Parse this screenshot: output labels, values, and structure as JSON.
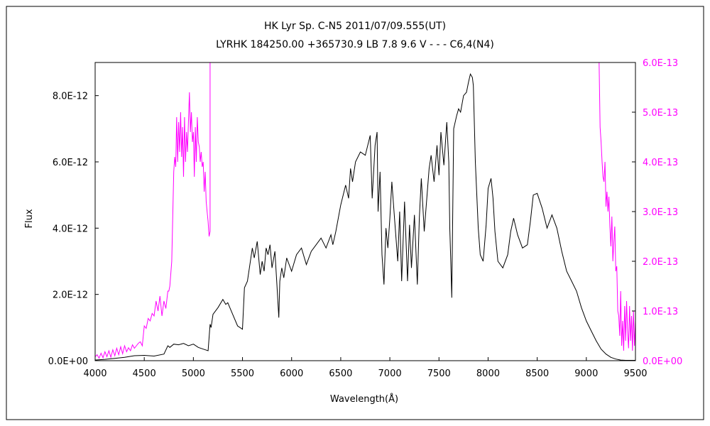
{
  "chart_data": {
    "type": "line",
    "title_line1": "HK Lyr    Sp. C-N5    2011/07/09.555(UT)",
    "title_line2": "LYRHK 184250.00 +365730.9 LB 7.8 9.6 V - - - C6,4(N4)",
    "xlabel": "Wavelength(Å)",
    "ylabel": "Flux",
    "xlim": [
      4000,
      9500
    ],
    "ylim": [
      0,
      9e-12
    ],
    "y2lim": [
      0,
      6e-13
    ],
    "x_ticks": [
      4000,
      4500,
      5000,
      5500,
      6000,
      6500,
      7000,
      7500,
      8000,
      8500,
      9000,
      9500
    ],
    "x_tick_labels": [
      "4000",
      "4500",
      "5000",
      "5500",
      "6000",
      "6500",
      "7000",
      "7500",
      "8000",
      "8500",
      "9000",
      "9500"
    ],
    "y_ticks": [
      0,
      2e-12,
      4e-12,
      6e-12,
      8e-12
    ],
    "y_tick_labels": [
      "0.0E+00",
      "2.0E-12",
      "4.0E-12",
      "6.0E-12",
      "8.0E-12"
    ],
    "y2_ticks": [
      0,
      1e-13,
      2e-13,
      3e-13,
      4e-13,
      5e-13,
      6e-13
    ],
    "y2_tick_labels": [
      "0.0E+00",
      "1.0E-13",
      "2.0E-13",
      "3.0E-13",
      "4.0E-13",
      "5.0E-13",
      "6.0E-13"
    ],
    "grid": false,
    "colors": {
      "main": "#000000",
      "scaled": "#ff00ff",
      "frame": "#000000"
    },
    "series": [
      {
        "axis": "left",
        "x": [
          4000,
          4100,
          4200,
          4300,
          4400,
          4500,
          4600,
          4700,
          4740,
          4760,
          4800,
          4850,
          4900,
          4950,
          5000,
          5050,
          5100,
          5150,
          5170,
          5180,
          5200,
          5250,
          5300,
          5330,
          5350,
          5400,
          5450,
          5500,
          5520,
          5550,
          5600,
          5620,
          5650,
          5680,
          5700,
          5720,
          5740,
          5760,
          5780,
          5800,
          5830,
          5850,
          5870,
          5880,
          5900,
          5920,
          5950,
          6000,
          6050,
          6100,
          6150,
          6200,
          6250,
          6300,
          6350,
          6400,
          6420,
          6450,
          6500,
          6550,
          6580,
          6600,
          6620,
          6650,
          6700,
          6750,
          6800,
          6820,
          6850,
          6870,
          6880,
          6900,
          6920,
          6940,
          6960,
          6980,
          7000,
          7020,
          7050,
          7080,
          7100,
          7120,
          7150,
          7180,
          7200,
          7220,
          7250,
          7280,
          7300,
          7320,
          7350,
          7400,
          7420,
          7450,
          7480,
          7500,
          7520,
          7550,
          7580,
          7600,
          7610,
          7620,
          7630,
          7650,
          7680,
          7700,
          7720,
          7750,
          7780,
          7800,
          7820,
          7840,
          7850,
          7870,
          7900,
          7920,
          7950,
          7980,
          8000,
          8030,
          8050,
          8070,
          8100,
          8150,
          8200,
          8230,
          8260,
          8300,
          8350,
          8400,
          8430,
          8460,
          8500,
          8550,
          8600,
          8650,
          8700,
          8750,
          8800,
          8850,
          8900,
          8950,
          9000,
          9050,
          9100,
          9150,
          9200,
          9250,
          9300,
          9350,
          9400,
          9450,
          9500
        ],
        "y": [
          2e-14,
          4e-14,
          7e-14,
          1e-13,
          1.5e-13,
          1.6e-13,
          1.4e-13,
          2e-13,
          4.5e-13,
          4e-13,
          5e-13,
          4.8e-13,
          5.2e-13,
          4.5e-13,
          5e-13,
          4e-13,
          3.5e-13,
          3e-13,
          1.1e-12,
          1e-12,
          1.4e-12,
          1.6e-12,
          1.85e-12,
          1.7e-12,
          1.75e-12,
          1.4e-12,
          1.05e-12,
          9.5e-13,
          2.2e-12,
          2.4e-12,
          3.4e-12,
          3.1e-12,
          3.6e-12,
          2.6e-12,
          3e-12,
          2.7e-12,
          3.4e-12,
          3.2e-12,
          3.5e-12,
          2.8e-12,
          3.3e-12,
          2.3e-12,
          1.3e-12,
          2.4e-12,
          2.8e-12,
          2.5e-12,
          3.1e-12,
          2.7e-12,
          3.2e-12,
          3.4e-12,
          2.9e-12,
          3.3e-12,
          3.5e-12,
          3.7e-12,
          3.4e-12,
          3.8e-12,
          3.5e-12,
          3.9e-12,
          4.7e-12,
          5.3e-12,
          4.9e-12,
          5.8e-12,
          5.4e-12,
          6e-12,
          6.3e-12,
          6.2e-12,
          6.8e-12,
          4.9e-12,
          6.5e-12,
          6.9e-12,
          4.5e-12,
          5.7e-12,
          3.2e-12,
          2.3e-12,
          4e-12,
          3.4e-12,
          4.3e-12,
          5.4e-12,
          4.2e-12,
          3e-12,
          4.5e-12,
          2.4e-12,
          4.8e-12,
          2.4e-12,
          4.1e-12,
          2.8e-12,
          4.4e-12,
          2.3e-12,
          4.3e-12,
          5.5e-12,
          3.9e-12,
          5.8e-12,
          6.2e-12,
          5.4e-12,
          6.5e-12,
          5.6e-12,
          6.9e-12,
          5.9e-12,
          7.2e-12,
          6e-12,
          4e-12,
          3e-12,
          1.9e-12,
          7e-12,
          7.4e-12,
          7.6e-12,
          7.5e-12,
          8e-12,
          8.1e-12,
          8.4e-12,
          8.65e-12,
          8.55e-12,
          8.3e-12,
          6e-12,
          4e-12,
          3.2e-12,
          3e-12,
          4.1e-12,
          5.2e-12,
          5.5e-12,
          4.9e-12,
          3.9e-12,
          3e-12,
          2.8e-12,
          3.2e-12,
          3.9e-12,
          4.3e-12,
          3.8e-12,
          3.4e-12,
          3.5e-12,
          4.2e-12,
          5e-12,
          5.05e-12,
          4.6e-12,
          4e-12,
          4.4e-12,
          4e-12,
          3.3e-12,
          2.7e-12,
          2.4e-12,
          2.1e-12,
          1.6e-12,
          1.2e-12,
          9e-13,
          6e-13,
          3.5e-13,
          2e-13,
          1e-13,
          5e-14,
          2e-14,
          1e-14,
          1e-14,
          1e-14
        ]
      },
      {
        "axis": "right",
        "x": [
          4000,
          4020,
          4040,
          4060,
          4080,
          4100,
          4120,
          4140,
          4160,
          4180,
          4200,
          4220,
          4240,
          4260,
          4280,
          4300,
          4320,
          4340,
          4360,
          4380,
          4400,
          4420,
          4440,
          4460,
          4480,
          4500,
          4520,
          4540,
          4560,
          4580,
          4600,
          4620,
          4640,
          4660,
          4680,
          4700,
          4720,
          4740,
          4750,
          4760,
          4780,
          4800,
          4810,
          4820,
          4830,
          4840,
          4850,
          4860,
          4870,
          4880,
          4890,
          4900,
          4910,
          4920,
          4930,
          4940,
          4950,
          4960,
          4970,
          4980,
          4990,
          5000,
          5010,
          5020,
          5030,
          5040,
          5050,
          5060,
          5070,
          5080,
          5090,
          5100,
          5110,
          5120,
          5130,
          5140,
          5150,
          5160,
          5170,
          5170
        ],
        "y": [
          8e-15,
          1.2e-14,
          5e-15,
          1.5e-14,
          6e-15,
          1.8e-14,
          8e-15,
          2e-14,
          7e-15,
          2.2e-14,
          1e-14,
          2.5e-14,
          1.2e-14,
          2.8e-14,
          1.4e-14,
          3e-14,
          1.8e-14,
          2.6e-14,
          2e-14,
          3.2e-14,
          2.5e-14,
          3e-14,
          3.5e-14,
          3.8e-14,
          3e-14,
          7e-14,
          6.5e-14,
          8.5e-14,
          8e-14,
          9.5e-14,
          9e-14,
          1.2e-13,
          1e-13,
          1.3e-13,
          9e-14,
          1.2e-13,
          1.05e-13,
          1.4e-13,
          1.4e-13,
          1.5e-13,
          2e-13,
          3.8e-13,
          4.1e-13,
          3.9e-13,
          4.9e-13,
          4e-13,
          4.8e-13,
          4.2e-13,
          5e-13,
          4.1e-13,
          4.7e-13,
          3.7e-13,
          4.9e-13,
          4e-13,
          4.6e-13,
          4.2e-13,
          4.8e-13,
          5.4e-13,
          4.6e-13,
          5e-13,
          4.4e-13,
          4.6e-13,
          3.7e-13,
          4.7e-13,
          4e-13,
          4.9e-13,
          4.4e-13,
          4.3e-13,
          4e-13,
          4.2e-13,
          3.9e-13,
          4e-13,
          3.4e-13,
          3.8e-13,
          3.2e-13,
          3e-13,
          2.8e-13,
          2.5e-13,
          2.6e-13,
          6.2e-13
        ]
      },
      {
        "axis": "right",
        "x": [
          9130,
          9140,
          9150,
          9160,
          9170,
          9180,
          9190,
          9200,
          9210,
          9220,
          9230,
          9240,
          9250,
          9260,
          9270,
          9280,
          9290,
          9300,
          9310,
          9320,
          9330,
          9340,
          9350,
          9360,
          9370,
          9380,
          9390,
          9400,
          9410,
          9420,
          9430,
          9440,
          9450,
          9460,
          9470,
          9480,
          9490,
          9500
        ],
        "y": [
          6e-13,
          4.7e-13,
          4.4e-13,
          4e-13,
          3.7e-13,
          3.6e-13,
          4e-13,
          3.1e-13,
          3.4e-13,
          3e-13,
          3.3e-13,
          2.7e-13,
          2.3e-13,
          2.9e-13,
          2e-13,
          2.4e-13,
          2.7e-13,
          1.8e-13,
          1.9e-13,
          1e-13,
          9e-14,
          5e-14,
          1.4e-13,
          3e-14,
          8e-14,
          2e-14,
          1.1e-13,
          4e-14,
          1.2e-13,
          6e-14,
          2.5e-14,
          1.1e-13,
          4e-14,
          9e-14,
          2e-14,
          1e-13,
          3e-14,
          8e-14
        ]
      }
    ]
  }
}
